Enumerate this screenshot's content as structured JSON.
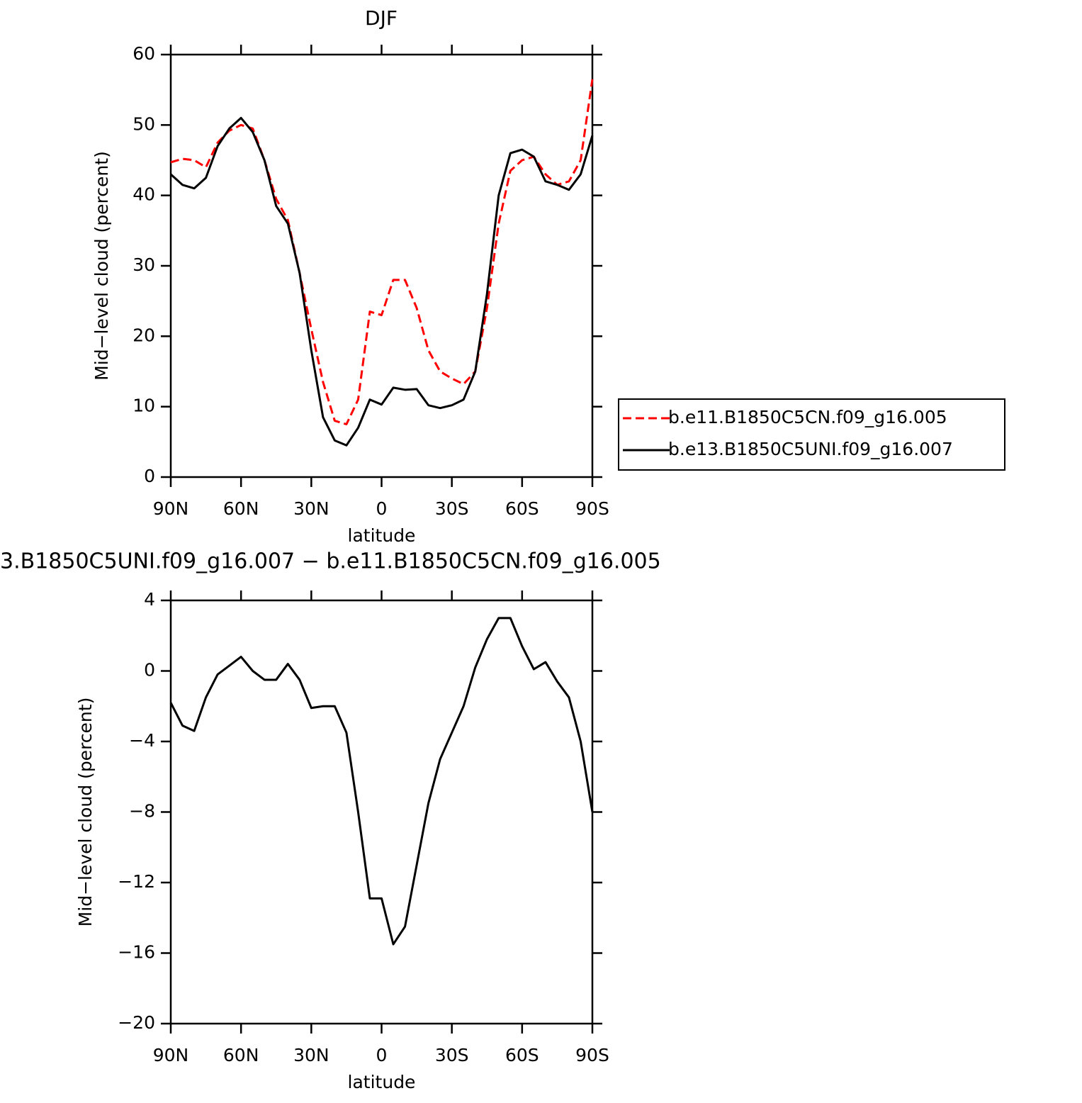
{
  "chart_data": [
    {
      "type": "line",
      "title": "DJF",
      "xlabel": "latitude",
      "ylabel": "Mid−level cloud (percent)",
      "x": [
        90,
        85,
        80,
        75,
        70,
        65,
        60,
        55,
        50,
        45,
        40,
        35,
        30,
        25,
        20,
        15,
        10,
        5,
        0,
        -5,
        -10,
        -15,
        -20,
        -25,
        -30,
        -35,
        -40,
        -45,
        -50,
        -55,
        -60,
        -65,
        -70,
        -75,
        -80,
        -85,
        -90
      ],
      "series": [
        {
          "name": "b.e11.B1850C5CN.f09_g16.005",
          "color": "#ff0000",
          "linestyle": "dashed",
          "values": [
            44.7,
            45.2,
            45.0,
            44.0,
            47.5,
            49.2,
            50.0,
            49.5,
            45.0,
            39.5,
            36.5,
            29.0,
            21.0,
            13.5,
            8.0,
            7.5,
            11.0,
            23.5,
            23.0,
            28.0,
            28.0,
            24.0,
            18.0,
            15.0,
            14.0,
            13.2,
            15.0,
            24.0,
            36.0,
            43.5,
            45.0,
            45.5,
            43.0,
            41.5,
            42.0,
            45.0,
            56.5
          ]
        },
        {
          "name": "b.e13.B1850C5UNI.f09_g16.007",
          "color": "#000000",
          "linestyle": "solid",
          "values": [
            43.0,
            41.5,
            41.0,
            42.5,
            47.0,
            49.5,
            51.0,
            49.0,
            45.0,
            38.5,
            36.0,
            29.0,
            18.0,
            8.5,
            5.2,
            4.5,
            7.0,
            11.0,
            10.3,
            12.7,
            12.4,
            12.5,
            10.2,
            9.8,
            10.2,
            11.0,
            15.0,
            26.0,
            40.0,
            46.0,
            46.5,
            45.5,
            42.0,
            41.5,
            40.8,
            43.0,
            48.5
          ]
        }
      ],
      "xlim": [
        90,
        -90
      ],
      "xticks": [
        {
          "value": 90,
          "label": "90N"
        },
        {
          "value": 60,
          "label": "60N"
        },
        {
          "value": 30,
          "label": "30N"
        },
        0,
        {
          "value": -30,
          "label": "30S"
        },
        {
          "value": -60,
          "label": "60S"
        },
        {
          "value": -90,
          "label": "90S"
        }
      ],
      "ylim": [
        0,
        60
      ],
      "yticks": [
        0,
        10,
        20,
        30,
        40,
        50,
        60
      ],
      "legend": "right"
    },
    {
      "type": "line",
      "title": "3.B1850C5UNI.f09_g16.007 − b.e11.B1850C5CN.f09_g16.005",
      "xlabel": "latitude",
      "ylabel": "Mid−level cloud (percent)",
      "x": [
        90,
        85,
        80,
        75,
        70,
        65,
        60,
        55,
        50,
        45,
        40,
        35,
        30,
        25,
        20,
        15,
        10,
        5,
        0,
        -5,
        -10,
        -15,
        -20,
        -25,
        -30,
        -35,
        -40,
        -45,
        -50,
        -55,
        -60,
        -65,
        -70,
        -75,
        -80,
        -85,
        -90
      ],
      "series": [
        {
          "color": "#000000",
          "linestyle": "solid",
          "values": [
            -1.8,
            -3.1,
            -3.4,
            -1.5,
            -0.2,
            0.3,
            0.8,
            0,
            -0.5,
            -0.5,
            0.4,
            -0.5,
            -2.1,
            -2.0,
            -2.0,
            -3.5,
            -8.0,
            -12.9,
            -12.9,
            -15.5,
            -14.5,
            -11.0,
            -7.5,
            -5.0,
            -3.5,
            -2.0,
            0.2,
            1.8,
            3.0,
            3.0,
            1.4,
            0.1,
            0.5,
            -0.6,
            -1.5,
            -4.0,
            -8.0
          ]
        }
      ],
      "xlim": [
        90,
        -90
      ],
      "xticks": [
        {
          "value": 90,
          "label": "90N"
        },
        {
          "value": 60,
          "label": "60N"
        },
        {
          "value": 30,
          "label": "30N"
        },
        0,
        {
          "value": -30,
          "label": "30S"
        },
        {
          "value": -60,
          "label": "60S"
        },
        {
          "value": -90,
          "label": "90S"
        }
      ],
      "ylim": [
        -20,
        4
      ],
      "yticks": [
        {
          "value": -20,
          "label": "−20"
        },
        {
          "value": -16,
          "label": "−16"
        },
        {
          "value": -12,
          "label": "−12"
        },
        {
          "value": -8,
          "label": "−8"
        },
        {
          "value": -4,
          "label": "−4"
        },
        0,
        4
      ]
    }
  ]
}
